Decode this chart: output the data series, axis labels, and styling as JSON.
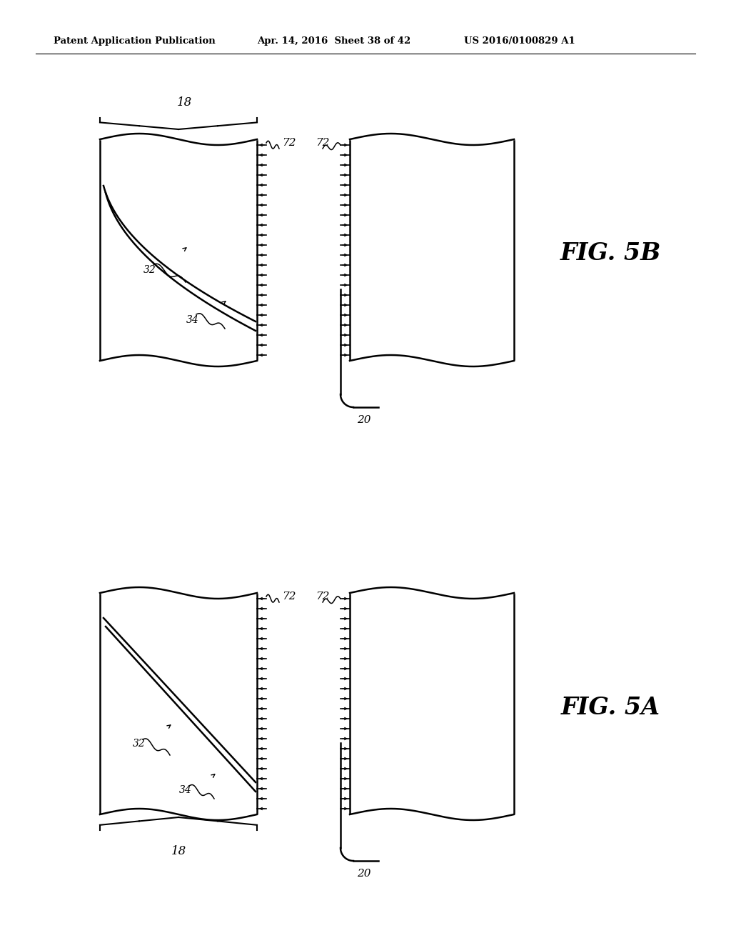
{
  "background_color": "#ffffff",
  "header_left": "Patent Application Publication",
  "header_center": "Apr. 14, 2016  Sheet 38 of 42",
  "header_right": "US 2016/0100829 A1",
  "fig5b_label": "FIG. 5B",
  "fig5a_label": "FIG. 5A",
  "label_18": "18",
  "label_20": "20",
  "label_32": "32",
  "label_34": "34",
  "label_72": "72"
}
